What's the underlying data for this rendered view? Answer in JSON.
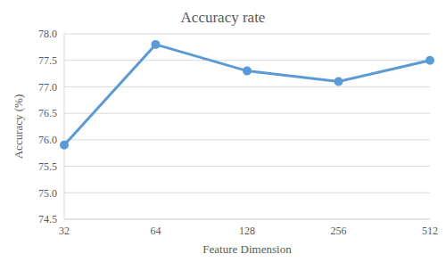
{
  "chart_data": {
    "type": "line",
    "title": "Accuracy rate",
    "x_label": "Feature Dimension",
    "y_label": "Accuracy (%)",
    "categories": [
      "32",
      "64",
      "128",
      "256",
      "512"
    ],
    "values": [
      75.9,
      77.8,
      77.3,
      77.1,
      77.5
    ],
    "color": "#5b9bd5",
    "marker": "circle",
    "ylim": [
      74.5,
      78.0
    ],
    "yticks": [
      74.5,
      {
        "value": 75,
        "label": "75.0"
      },
      75.5,
      {
        "value": 76,
        "label": "76.0"
      },
      76.5,
      {
        "value": 77,
        "label": "77.0"
      },
      77.5,
      {
        "value": 78,
        "label": "78.0"
      }
    ],
    "grid": true
  }
}
